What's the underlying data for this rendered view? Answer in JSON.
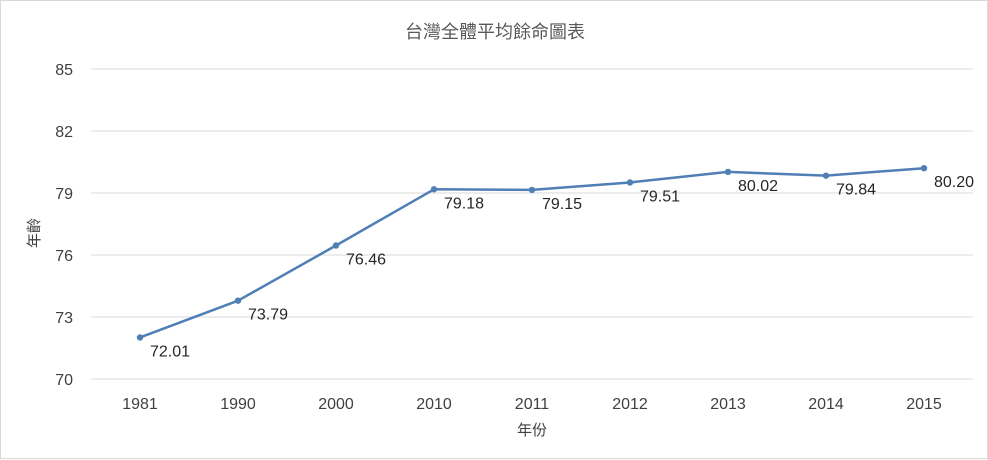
{
  "chart_data": {
    "type": "line",
    "title": "台灣全體平均餘命圖表",
    "xlabel": "年份",
    "ylabel": "年齡",
    "categories": [
      "1981",
      "1990",
      "2000",
      "2010",
      "2011",
      "2012",
      "2013",
      "2014",
      "2015"
    ],
    "series": [
      {
        "values": [
          72.01,
          73.79,
          76.46,
          79.18,
          79.15,
          79.51,
          80.02,
          79.84,
          80.2
        ],
        "labels": [
          "72.01",
          "73.79",
          "76.46",
          "79.18",
          "79.15",
          "79.51",
          "80.02",
          "79.84",
          "80.20"
        ]
      }
    ],
    "ylim": [
      70,
      85
    ],
    "yticks": [
      70,
      73,
      76,
      79,
      82,
      85
    ],
    "grid": true,
    "legend": "none",
    "colors": {
      "line": "#4f7fb5",
      "grid": "#d9d9d9",
      "text": "#404040"
    }
  }
}
